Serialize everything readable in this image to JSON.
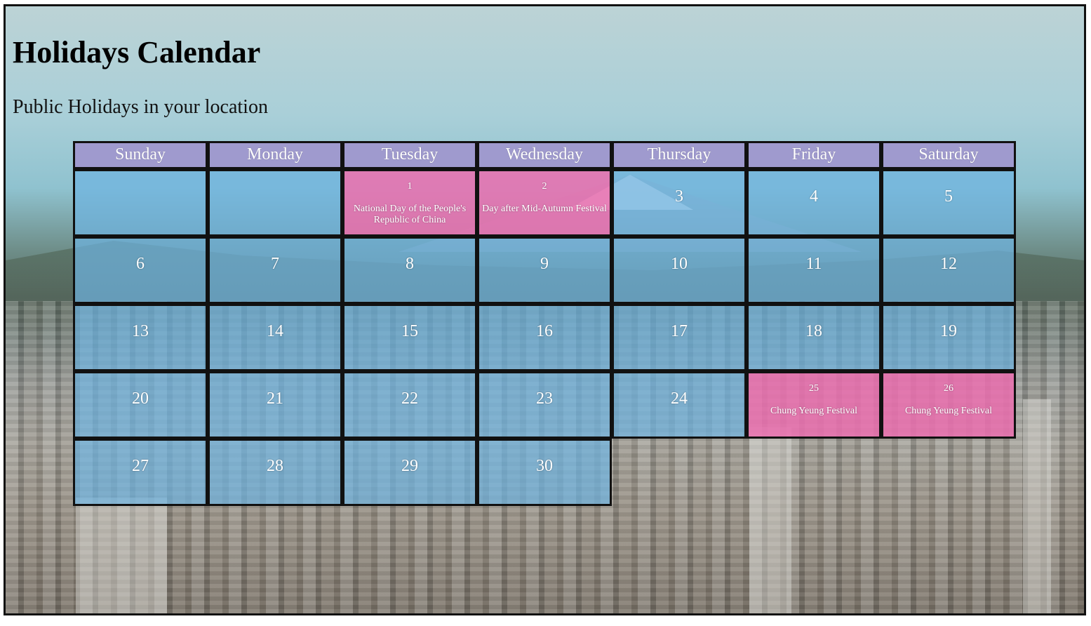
{
  "page": {
    "title": "Holidays Calendar",
    "subtitle": "Public Holidays in your location"
  },
  "colors": {
    "header_cell": "#a096cd",
    "day_cell": "#6eb4e1",
    "holiday_cell": "#eb6eaf",
    "border": "#111111",
    "text_light": "#ffffff"
  },
  "calendar": {
    "weekdays": [
      "Sunday",
      "Monday",
      "Tuesday",
      "Wednesday",
      "Thursday",
      "Friday",
      "Saturday"
    ],
    "weeks": [
      [
        {
          "date": "",
          "holiday": ""
        },
        {
          "date": "",
          "holiday": ""
        },
        {
          "date": "1",
          "holiday": "National Day of the People's Republic of China"
        },
        {
          "date": "2",
          "holiday": "Day after Mid-Autumn Festival"
        },
        {
          "date": "3",
          "holiday": ""
        },
        {
          "date": "4",
          "holiday": ""
        },
        {
          "date": "5",
          "holiday": ""
        }
      ],
      [
        {
          "date": "6",
          "holiday": ""
        },
        {
          "date": "7",
          "holiday": ""
        },
        {
          "date": "8",
          "holiday": ""
        },
        {
          "date": "9",
          "holiday": ""
        },
        {
          "date": "10",
          "holiday": ""
        },
        {
          "date": "11",
          "holiday": ""
        },
        {
          "date": "12",
          "holiday": ""
        }
      ],
      [
        {
          "date": "13",
          "holiday": ""
        },
        {
          "date": "14",
          "holiday": ""
        },
        {
          "date": "15",
          "holiday": ""
        },
        {
          "date": "16",
          "holiday": ""
        },
        {
          "date": "17",
          "holiday": ""
        },
        {
          "date": "18",
          "holiday": ""
        },
        {
          "date": "19",
          "holiday": ""
        }
      ],
      [
        {
          "date": "20",
          "holiday": ""
        },
        {
          "date": "21",
          "holiday": ""
        },
        {
          "date": "22",
          "holiday": ""
        },
        {
          "date": "23",
          "holiday": ""
        },
        {
          "date": "24",
          "holiday": ""
        },
        {
          "date": "25",
          "holiday": "Chung Yeung Festival"
        },
        {
          "date": "26",
          "holiday": "Chung Yeung Festival"
        }
      ],
      [
        {
          "date": "27",
          "holiday": ""
        },
        {
          "date": "28",
          "holiday": ""
        },
        {
          "date": "29",
          "holiday": ""
        },
        {
          "date": "30",
          "holiday": ""
        }
      ]
    ]
  }
}
